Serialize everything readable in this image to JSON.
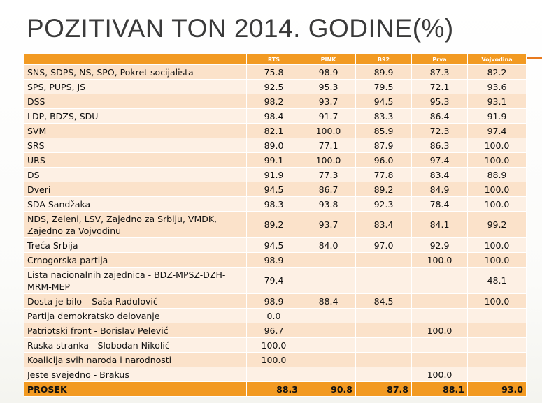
{
  "title": "POZITIVAN TON 2014. GODINE(%)",
  "columns": [
    "",
    "RTS",
    "PINK",
    "B92",
    "Prva",
    "Vojvodina"
  ],
  "rows": [
    {
      "party": "SNS, SDPS, NS, SPO, Pokret socijalista",
      "v": [
        "75.8",
        "98.9",
        "89.9",
        "87.3",
        "82.2"
      ]
    },
    {
      "party": "SPS, PUPS, JS",
      "v": [
        "92.5",
        "95.3",
        "79.5",
        "72.1",
        "93.6"
      ]
    },
    {
      "party": "DSS",
      "v": [
        "98.2",
        "93.7",
        "94.5",
        "95.3",
        "93.1"
      ]
    },
    {
      "party": "LDP, BDZS, SDU",
      "v": [
        "98.4",
        "91.7",
        "83.3",
        "86.4",
        "91.9"
      ]
    },
    {
      "party": "SVM",
      "v": [
        "82.1",
        "100.0",
        "85.9",
        "72.3",
        "97.4"
      ]
    },
    {
      "party": "SRS",
      "v": [
        "89.0",
        "77.1",
        "87.9",
        "86.3",
        "100.0"
      ]
    },
    {
      "party": "URS",
      "v": [
        "99.1",
        "100.0",
        "96.0",
        "97.4",
        "100.0"
      ]
    },
    {
      "party": "DS",
      "v": [
        "91.9",
        "77.3",
        "77.8",
        "83.4",
        "88.9"
      ]
    },
    {
      "party": "Dveri",
      "v": [
        "94.5",
        "86.7",
        "89.2",
        "84.9",
        "100.0"
      ]
    },
    {
      "party": "SDA Sandžaka",
      "v": [
        "98.3",
        "93.8",
        "92.3",
        "78.4",
        "100.0"
      ]
    },
    {
      "party": "NDS, Zeleni, LSV, Zajedno za Srbiju, VMDK, Zajedno za Vojvodinu",
      "v": [
        "89.2",
        "93.7",
        "83.4",
        "84.1",
        "99.2"
      ]
    },
    {
      "party": "Treća Srbija",
      "v": [
        "94.5",
        "84.0",
        "97.0",
        "92.9",
        "100.0"
      ]
    },
    {
      "party": "Crnogorska partija",
      "v": [
        "98.9",
        "",
        "",
        "100.0",
        "100.0"
      ]
    },
    {
      "party": "Lista nacionalnih zajednica - BDZ-MPSZ-DZH-MRM-MEP",
      "v": [
        "79.4",
        "",
        "",
        "",
        "48.1"
      ]
    },
    {
      "party": "Dosta je bilo – Saša Radulović",
      "v": [
        "98.9",
        "88.4",
        "84.5",
        "",
        "100.0"
      ]
    },
    {
      "party": "Partija demokratsko delovanje",
      "v": [
        "0.0",
        "",
        "",
        "",
        ""
      ]
    },
    {
      "party": "Patriotski front - Borislav Pelević",
      "v": [
        "96.7",
        "",
        "",
        "100.0",
        ""
      ]
    },
    {
      "party": "Ruska stranka - Slobodan Nikolić",
      "v": [
        "100.0",
        "",
        "",
        "",
        ""
      ]
    },
    {
      "party": "Koalicija svih naroda i narodnosti",
      "v": [
        "100.0",
        "",
        "",
        "",
        ""
      ]
    },
    {
      "party": "Jeste svejedno - Brakus",
      "v": [
        "",
        "",
        "",
        "100.0",
        ""
      ]
    }
  ],
  "average": {
    "label": "PROSEK",
    "v": [
      "88.3",
      "90.8",
      "87.8",
      "88.1",
      "93.0"
    ]
  }
}
